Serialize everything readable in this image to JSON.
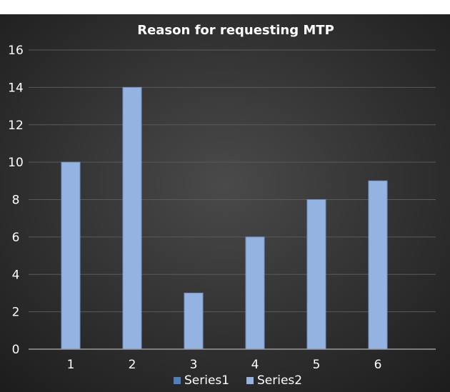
{
  "chart_data": {
    "type": "bar",
    "title": "Reason for requesting MTP",
    "xlabel": "",
    "ylabel": "",
    "categories": [
      "1",
      "2",
      "3",
      "4",
      "5",
      "6"
    ],
    "series": [
      {
        "name": "Series1",
        "values": [
          null,
          null,
          null,
          null,
          null,
          null
        ],
        "color": "#4f81bd"
      },
      {
        "name": "Series2",
        "values": [
          10,
          14,
          3,
          6,
          8,
          9
        ],
        "color": "#95b3e0"
      }
    ],
    "ylim": [
      0,
      16
    ],
    "yticks": [
      0,
      2,
      4,
      6,
      8,
      10,
      12,
      14,
      16
    ],
    "grid": true,
    "legend_position": "bottom",
    "background_color": "#2e2e2e"
  }
}
